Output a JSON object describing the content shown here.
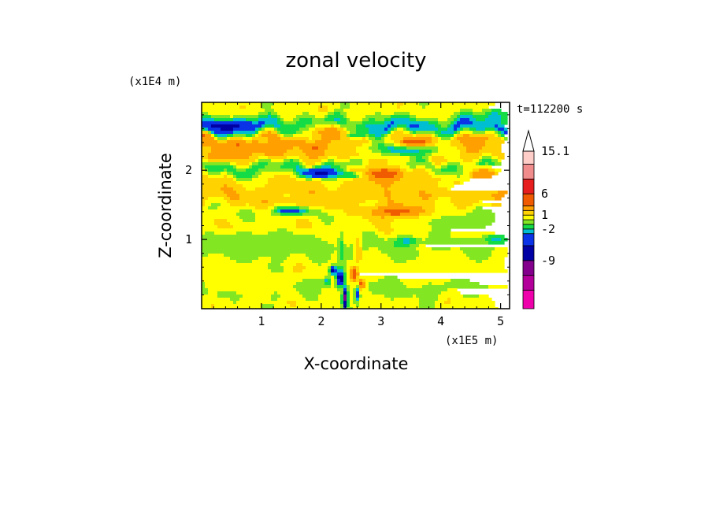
{
  "chart_data": {
    "type": "heatmap",
    "title": "zonal velocity",
    "xlabel": "X-coordinate",
    "ylabel": "Z-coordinate",
    "x_unit": "(x1E5 m)",
    "y_unit": "(x1E4 m)",
    "time_label": "t=112200 s",
    "xlim": [
      0,
      5.15
    ],
    "ylim": [
      0,
      2.98
    ],
    "x_ticks": [
      "1",
      "2",
      "3",
      "4",
      "5"
    ],
    "y_ticks": [
      "1",
      "2"
    ],
    "colorbar": {
      "labels": [
        "15.1",
        "6",
        "1",
        "-2",
        "-9"
      ],
      "levels": [
        -15,
        -12,
        -9,
        -6,
        -3,
        -2,
        -1,
        0,
        1,
        2,
        3,
        6,
        9,
        12,
        15.1
      ],
      "colors": [
        "#ee00aa",
        "#b4009b",
        "#82008c",
        "#0000a5",
        "#0a32e6",
        "#00bed2",
        "#14dc46",
        "#82e623",
        "#ffff00",
        "#ffd200",
        "#ffa000",
        "#f05a00",
        "#e61e1e",
        "#f08c8c",
        "#ffcdc8"
      ]
    },
    "bands": [
      {
        "z": 2.85,
        "u": 0.5
      },
      {
        "z": 2.62,
        "u": -3
      },
      {
        "z": 2.42,
        "u": 2.5
      },
      {
        "z": 2.2,
        "u": 1.5
      },
      {
        "z": 2.03,
        "u": -1.5
      },
      {
        "z": 1.85,
        "u": 1
      },
      {
        "z": 1.62,
        "u": 1.8
      },
      {
        "z": 1.4,
        "u": 0.3
      },
      {
        "z": 1.15,
        "u": 0.8
      },
      {
        "z": 0.92,
        "u": -0.4
      },
      {
        "z": 0.7,
        "u": 0.2
      },
      {
        "z": 0.5,
        "u": 0.6
      },
      {
        "z": 0.3,
        "u": -0.5
      },
      {
        "z": 0.1,
        "u": 0.4
      }
    ],
    "features": [
      {
        "x": 0.4,
        "z": 2.64,
        "rx": 0.35,
        "rz": 0.07,
        "u": -8
      },
      {
        "x": 3.45,
        "z": 2.35,
        "rx": 0.55,
        "rz": 0.12,
        "u": -8
      },
      {
        "x": 2.0,
        "z": 1.96,
        "rx": 0.28,
        "rz": 0.06,
        "u": -7
      },
      {
        "x": 2.55,
        "z": 1.93,
        "rx": 0.25,
        "rz": 0.05,
        "u": -6
      },
      {
        "x": 1.5,
        "z": 1.42,
        "rx": 0.3,
        "rz": 0.06,
        "u": -5
      },
      {
        "x": 2.55,
        "z": 2.52,
        "rx": 0.12,
        "rz": 0.05,
        "u": -8
      },
      {
        "x": 2.65,
        "z": 2.55,
        "rx": 0.25,
        "rz": 0.07,
        "u": -3
      },
      {
        "x": 3.05,
        "z": 1.95,
        "rx": 0.55,
        "rz": 0.13,
        "u": 3.8
      },
      {
        "x": 3.55,
        "z": 2.4,
        "rx": 0.5,
        "rz": 0.11,
        "u": 4
      },
      {
        "x": 3.3,
        "z": 1.4,
        "rx": 0.55,
        "rz": 0.1,
        "u": 3.6
      },
      {
        "x": 2.1,
        "z": 2.55,
        "rx": 0.5,
        "rz": 0.13,
        "u": 2.5
      },
      {
        "x": 4.9,
        "z": 2.78,
        "rx": 0.25,
        "rz": 0.12,
        "u": -2.5
      },
      {
        "x": 4.7,
        "z": 1.95,
        "rx": 0.3,
        "rz": 0.1,
        "u": 3
      },
      {
        "x": 0.25,
        "z": 2.2,
        "rx": 0.3,
        "rz": 0.1,
        "u": 2.5
      },
      {
        "x": 1.15,
        "z": 2.3,
        "rx": 0.3,
        "rz": 0.1,
        "u": 3
      },
      {
        "x": 3.45,
        "z": 0.98,
        "rx": 0.2,
        "rz": 0.07,
        "u": -2.5
      },
      {
        "x": 4.9,
        "z": 1.0,
        "rx": 0.2,
        "rz": 0.08,
        "u": -2.5
      },
      {
        "x": 1.8,
        "z": 1.55,
        "rx": 0.7,
        "rz": 0.1,
        "u": 1.5
      },
      {
        "x": 4.3,
        "z": 1.25,
        "rx": 0.6,
        "rz": 0.15,
        "u": -0.6
      },
      {
        "x": 1.0,
        "z": 0.95,
        "rx": 0.9,
        "rz": 0.18,
        "u": -0.7
      },
      {
        "x": 4.2,
        "z": 0.55,
        "rx": 0.9,
        "rz": 0.2,
        "u": 0.2
      },
      {
        "x": 0.8,
        "z": 0.35,
        "rx": 0.8,
        "rz": 0.15,
        "u": 0.7
      },
      {
        "x": 2.4,
        "z": 0.35,
        "rx": 0.3,
        "rz": 0.35,
        "u": 0.3
      },
      {
        "x": 2.32,
        "z": 0.45,
        "rx": 0.06,
        "rz": 0.1,
        "u": -9
      },
      {
        "x": 2.2,
        "z": 0.55,
        "rx": 0.06,
        "rz": 0.05,
        "u": -7
      },
      {
        "x": 2.55,
        "z": 0.5,
        "rx": 0.06,
        "rz": 0.1,
        "u": 5
      },
      {
        "x": 2.4,
        "z": 0.15,
        "rx": 0.04,
        "rz": 0.15,
        "u": -10
      },
      {
        "x": 2.68,
        "z": 0.35,
        "rx": 0.05,
        "rz": 0.08,
        "u": 4
      },
      {
        "x": 2.1,
        "z": 0.4,
        "rx": 0.05,
        "rz": 0.06,
        "u": -3
      },
      {
        "x": 2.6,
        "z": 0.2,
        "rx": 0.04,
        "rz": 0.1,
        "u": -4
      },
      {
        "x": 2.33,
        "z": 0.85,
        "rx": 0.05,
        "rz": 0.25,
        "u": -1.6
      },
      {
        "x": 2.62,
        "z": 0.85,
        "rx": 0.06,
        "rz": 0.25,
        "u": 1.8
      }
    ]
  }
}
